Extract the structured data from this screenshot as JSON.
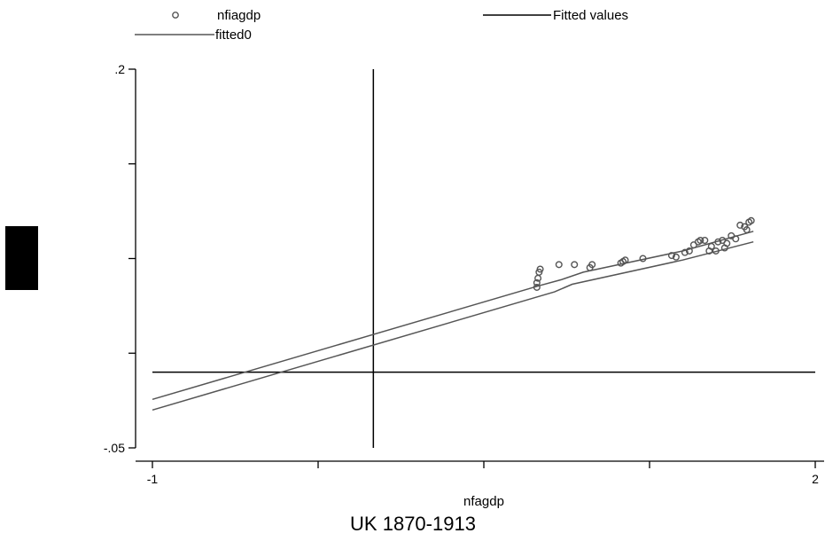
{
  "chart_data": {
    "type": "scatter",
    "xlabel": "nfagdp",
    "ylabel": "",
    "note": "UK 1870-1913",
    "xlim": [
      -1,
      2
    ],
    "ylim": [
      -0.05,
      0.2
    ],
    "x_ticks": [
      -1,
      -0.25,
      0.5,
      1.25,
      2
    ],
    "x_tick_labels": [
      "-1",
      "",
      "",
      "",
      "2"
    ],
    "y_ticks": [
      -0.05,
      0.0125,
      0.075,
      0.1375,
      0.2
    ],
    "y_tick_labels": [
      "-.05",
      "",
      "",
      "",
      ".2"
    ],
    "legend_position": "top",
    "legend": [
      {
        "label": "nfiagdp",
        "marker": "circle"
      },
      {
        "label": "Fitted values",
        "marker": "line"
      },
      {
        "label": "fitted0",
        "marker": "line"
      }
    ],
    "colors": {
      "series": "#555555",
      "reference": "#000000"
    },
    "reference_lines": {
      "vertical_x": 0.0,
      "horizontal_y": 0.0
    },
    "series": [
      {
        "name": "nfiagdp",
        "kind": "scatter",
        "points": [
          [
            0.74,
            0.056
          ],
          [
            0.74,
            0.059
          ],
          [
            0.745,
            0.062
          ],
          [
            0.75,
            0.066
          ],
          [
            0.755,
            0.068
          ],
          [
            0.84,
            0.071
          ],
          [
            0.91,
            0.071
          ],
          [
            0.98,
            0.069
          ],
          [
            0.99,
            0.071
          ],
          [
            1.12,
            0.072
          ],
          [
            1.13,
            0.073
          ],
          [
            1.14,
            0.074
          ],
          [
            1.22,
            0.075
          ],
          [
            1.35,
            0.077
          ],
          [
            1.37,
            0.076
          ],
          [
            1.41,
            0.079
          ],
          [
            1.43,
            0.08
          ],
          [
            1.45,
            0.084
          ],
          [
            1.47,
            0.086
          ],
          [
            1.48,
            0.087
          ],
          [
            1.5,
            0.087
          ],
          [
            1.52,
            0.08
          ],
          [
            1.53,
            0.083
          ],
          [
            1.55,
            0.08
          ],
          [
            1.56,
            0.086
          ],
          [
            1.58,
            0.087
          ],
          [
            1.59,
            0.082
          ],
          [
            1.6,
            0.085
          ],
          [
            1.62,
            0.09
          ],
          [
            1.64,
            0.088
          ],
          [
            1.66,
            0.097
          ],
          [
            1.68,
            0.096
          ],
          [
            1.69,
            0.094
          ],
          [
            1.7,
            0.099
          ],
          [
            1.71,
            0.1
          ]
        ]
      },
      {
        "name": "Fitted values",
        "kind": "line",
        "points": [
          [
            -1,
            -0.018
          ],
          [
            0.75,
            0.057
          ],
          [
            0.85,
            0.061
          ],
          [
            0.95,
            0.066
          ],
          [
            1.4,
            0.08
          ],
          [
            1.72,
            0.093
          ]
        ]
      },
      {
        "name": "fitted0",
        "kind": "line",
        "points": [
          [
            -1,
            -0.025
          ],
          [
            0.75,
            0.05
          ],
          [
            0.82,
            0.053
          ],
          [
            0.9,
            0.058
          ],
          [
            1.4,
            0.074
          ],
          [
            1.72,
            0.086
          ]
        ]
      }
    ]
  }
}
